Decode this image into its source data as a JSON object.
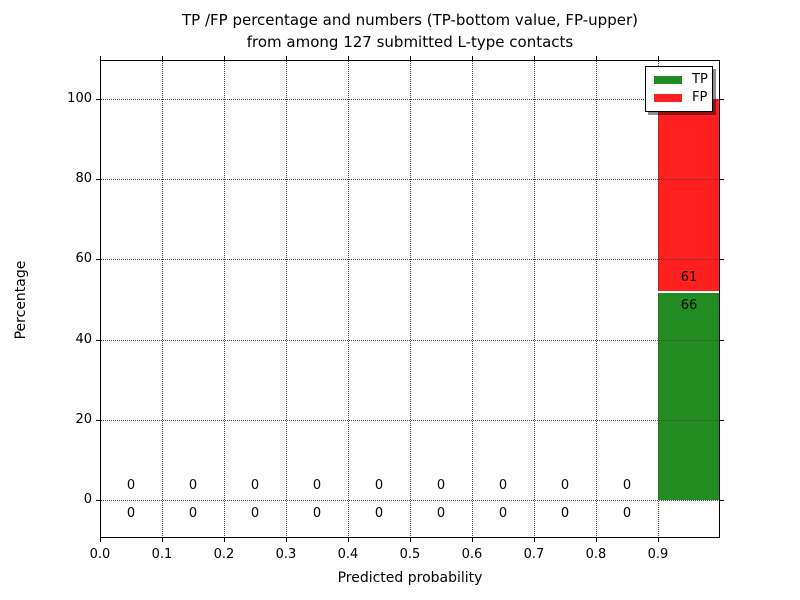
{
  "figure": {
    "title_line1": "TP /FP percentage and numbers (TP-bottom value, FP-upper)",
    "title_line2": "from among 127 submitted L-type contacts"
  },
  "chart_data": {
    "type": "bar",
    "stacked": true,
    "title": "TP /FP percentage and numbers (TP-bottom value, FP-upper) from among 127 submitted L-type contacts",
    "xlabel": "Predicted probability",
    "ylabel": "Percentage",
    "total_contacts": 127,
    "bin_centers": [
      0.05,
      0.15,
      0.25,
      0.35,
      0.45,
      0.55,
      0.65,
      0.75,
      0.85,
      0.95
    ],
    "bar_width": 0.1,
    "series": [
      {
        "name": "TP",
        "color": "#228b22",
        "counts": [
          0,
          0,
          0,
          0,
          0,
          0,
          0,
          0,
          0,
          66
        ]
      },
      {
        "name": "FP",
        "color": "#ff1f1f",
        "counts": [
          0,
          0,
          0,
          0,
          0,
          0,
          0,
          0,
          0,
          61
        ]
      }
    ],
    "x_ticks": [
      0.0,
      0.1,
      0.2,
      0.3,
      0.4,
      0.5,
      0.6,
      0.7,
      0.8,
      0.9
    ],
    "x_tick_labels": [
      "0.0",
      "0.1",
      "0.2",
      "0.3",
      "0.4",
      "0.5",
      "0.6",
      "0.7",
      "0.8",
      "0.9"
    ],
    "y_ticks": [
      0,
      20,
      40,
      60,
      80,
      100
    ],
    "y_tick_labels": [
      "0",
      "20",
      "40",
      "60",
      "80",
      "100"
    ],
    "xlim": [
      0.0,
      1.0
    ],
    "ylim": [
      -9.5,
      109.7
    ],
    "grid": "dotted both axes",
    "legend_position": "upper right",
    "annotation_note": "values drawn at stack boundary: FP count above, TP count below"
  }
}
